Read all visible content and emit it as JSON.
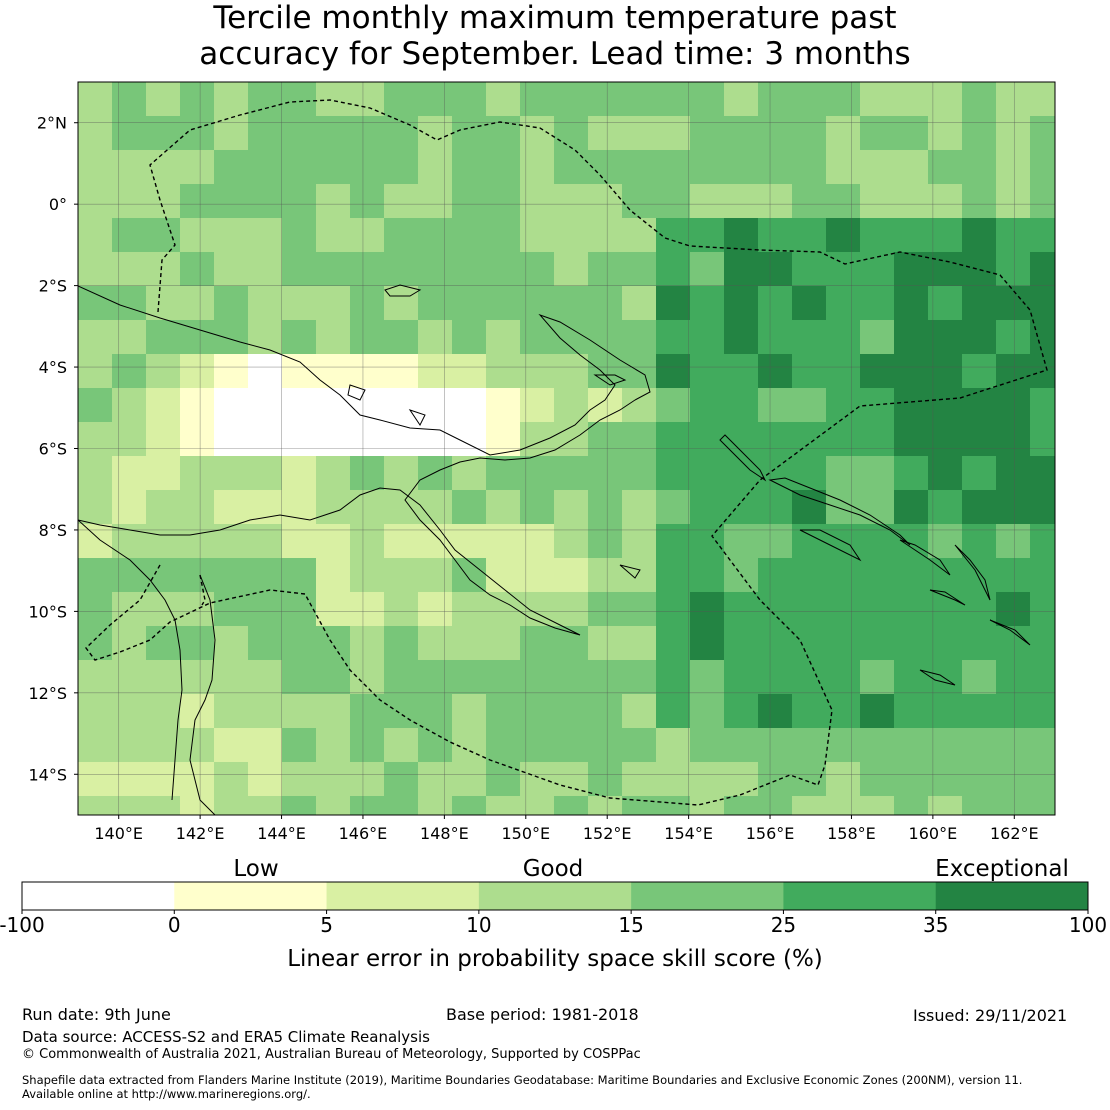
{
  "title": {
    "line1": "Tercile monthly maximum temperature past",
    "line2": "accuracy for September. Lead time: 3 months"
  },
  "map": {
    "lon_ticks": [
      "140°E",
      "142°E",
      "144°E",
      "146°E",
      "148°E",
      "150°E",
      "152°E",
      "154°E",
      "156°E",
      "158°E",
      "160°E",
      "162°E"
    ],
    "lat_ticks": [
      "2°N",
      "0°",
      "2°S",
      "4°S",
      "6°S",
      "8°S",
      "10°S",
      "12°S",
      "14°S"
    ],
    "lon_range": [
      139,
      163
    ],
    "lat_range": [
      -15,
      3
    ],
    "grid": true,
    "boundary_style": "dashed"
  },
  "colorbar": {
    "categories": [
      "Low",
      "Good",
      "Exceptional"
    ],
    "tick_labels": [
      "-100",
      "0",
      "5",
      "10",
      "15",
      "25",
      "35",
      "100"
    ],
    "colors": [
      "#ffffff",
      "#ffffcc",
      "#d9f0a3",
      "#addd8e",
      "#78c679",
      "#41ab5d",
      "#238443"
    ],
    "label": "Linear error in probability space skill score (%)"
  },
  "footer": {
    "run_date": "Run date: 9th June",
    "base_period": "Base period: 1981-2018",
    "issued": "Issued: 29/11/2021",
    "data_source": "Data source: ACCESS-S2 and ERA5 Climate Reanalysis",
    "copyright": "© Commonwealth of Australia 2021, Australian Bureau of Meteorology, Supported by COSPPac",
    "shapefile_line1": "Shapefile data extracted from Flanders Marine Institute (2019), Maritime Boundaries Geodatabase: Maritime Boundaries and Exclusive Economic Zones (200NM), version 11.",
    "shapefile_line2": "Available online at http://www.marineregions.org/."
  }
}
